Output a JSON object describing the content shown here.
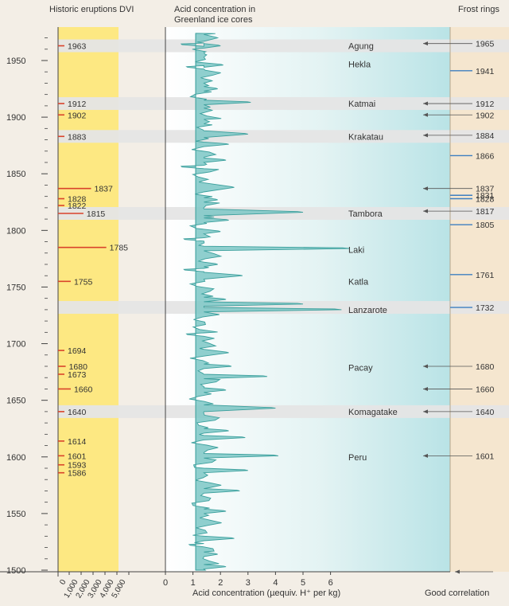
{
  "headers": {
    "left": "Historic eruptions DVI",
    "middle": [
      "Acid concentration in",
      "Greenland ice cores"
    ],
    "right": "Frost rings"
  },
  "colors": {
    "dvi_panel": "#fde882",
    "band": "#e5e5e5",
    "acid_fill": "#7cc7c5",
    "acid_line": "#3a9f9c",
    "eruption_tick": "#d9432b",
    "frost_arrow": "#555555",
    "frost_good": "#3d7fc0",
    "axis": "#444444"
  },
  "chart_data": {
    "type": "line",
    "title": "",
    "year_axis": {
      "min": 1500,
      "max": 1975,
      "ticks": [
        1500,
        1550,
        1600,
        1650,
        1700,
        1750,
        1800,
        1850,
        1900,
        1950
      ]
    },
    "dvi_axis": {
      "ticks": [
        "0",
        "1,000",
        "2,000",
        "3,000",
        "4,000",
        "5,000"
      ],
      "max": 5000
    },
    "eruptions_dvi": [
      {
        "year": 1963,
        "dvi": 110
      },
      {
        "year": 1912,
        "dvi": 110
      },
      {
        "year": 1902,
        "dvi": 220
      },
      {
        "year": 1883,
        "dvi": 220
      },
      {
        "year": 1837,
        "dvi": 2600
      },
      {
        "year": 1828,
        "dvi": 250
      },
      {
        "year": 1822,
        "dvi": 450
      },
      {
        "year": 1815,
        "dvi": 2000
      },
      {
        "year": 1785,
        "dvi": 3800
      },
      {
        "year": 1755,
        "dvi": 1000
      },
      {
        "year": 1694,
        "dvi": 500
      },
      {
        "year": 1680,
        "dvi": 600
      },
      {
        "year": 1673,
        "dvi": 500
      },
      {
        "year": 1660,
        "dvi": 1000
      },
      {
        "year": 1640,
        "dvi": 250
      },
      {
        "year": 1614,
        "dvi": 250
      },
      {
        "year": 1601,
        "dvi": 250
      },
      {
        "year": 1593,
        "dvi": 250
      },
      {
        "year": 1586,
        "dvi": 250
      }
    ],
    "acid": {
      "xlabel": "Acid concentration (µequiv. H⁺ per  kg)",
      "ticks": [
        0,
        1,
        2,
        3,
        4,
        5,
        6
      ],
      "baseline": 1.1,
      "spikes": [
        {
          "year": 1970,
          "value": 1.9,
          "w": 3
        },
        {
          "year": 1963,
          "value": 2.0,
          "w": 2
        },
        {
          "year": 1955,
          "value": 1.5,
          "w": 2
        },
        {
          "year": 1946,
          "value": 2.1,
          "w": 2
        },
        {
          "year": 1932,
          "value": 1.7,
          "w": 2
        },
        {
          "year": 1925,
          "value": 1.9,
          "w": 2
        },
        {
          "year": 1913,
          "value": 3.1,
          "w": 2
        },
        {
          "year": 1906,
          "value": 1.7,
          "w": 2
        },
        {
          "year": 1896,
          "value": 1.6,
          "w": 2
        },
        {
          "year": 1885,
          "value": 3.0,
          "w": 3
        },
        {
          "year": 1876,
          "value": 2.3,
          "w": 2
        },
        {
          "year": 1862,
          "value": 2.2,
          "w": 2
        },
        {
          "year": 1838,
          "value": 2.5,
          "w": 4
        },
        {
          "year": 1827,
          "value": 1.9,
          "w": 2
        },
        {
          "year": 1816,
          "value": 5.0,
          "w": 3
        },
        {
          "year": 1809,
          "value": 2.3,
          "w": 2
        },
        {
          "year": 1799,
          "value": 2.0,
          "w": 2
        },
        {
          "year": 1784,
          "value": 6.7,
          "w": 2
        },
        {
          "year": 1770,
          "value": 1.9,
          "w": 2
        },
        {
          "year": 1760,
          "value": 2.8,
          "w": 3
        },
        {
          "year": 1739,
          "value": 2.2,
          "w": 2
        },
        {
          "year": 1735,
          "value": 5.0,
          "w": 2
        },
        {
          "year": 1730,
          "value": 6.4,
          "w": 2
        },
        {
          "year": 1692,
          "value": 2.3,
          "w": 3
        },
        {
          "year": 1680,
          "value": 2.4,
          "w": 2
        },
        {
          "year": 1671,
          "value": 3.7,
          "w": 2
        },
        {
          "year": 1659,
          "value": 2.2,
          "w": 2
        },
        {
          "year": 1643,
          "value": 4.0,
          "w": 3
        },
        {
          "year": 1623,
          "value": 2.3,
          "w": 2
        },
        {
          "year": 1617,
          "value": 2.9,
          "w": 2
        },
        {
          "year": 1601,
          "value": 4.1,
          "w": 2
        },
        {
          "year": 1588,
          "value": 3.0,
          "w": 2
        },
        {
          "year": 1570,
          "value": 2.7,
          "w": 2
        },
        {
          "year": 1552,
          "value": 2.2,
          "w": 2
        },
        {
          "year": 1528,
          "value": 2.5,
          "w": 2
        },
        {
          "year": 1514,
          "value": 1.9,
          "w": 2
        },
        {
          "year": 1503,
          "value": 2.2,
          "w": 2
        }
      ],
      "dips": [
        {
          "year": 1964,
          "value": 0.6
        },
        {
          "year": 1944,
          "value": 0.8
        },
        {
          "year": 1856,
          "value": 0.6
        },
        {
          "year": 1792,
          "value": 0.7
        },
        {
          "year": 1765,
          "value": 0.7
        },
        {
          "year": 1708,
          "value": 0.8
        },
        {
          "year": 1522,
          "value": 0.9
        }
      ]
    },
    "volcanoes": [
      {
        "name": "Agung",
        "year": 1963
      },
      {
        "name": "Hekla",
        "year": 1947
      },
      {
        "name": "Katmai",
        "year": 1912
      },
      {
        "name": "Krakatau",
        "year": 1883
      },
      {
        "name": "Tambora",
        "year": 1815
      },
      {
        "name": "Laki",
        "year": 1783
      },
      {
        "name": "Katla",
        "year": 1755
      },
      {
        "name": "Lanzarote",
        "year": 1730
      },
      {
        "name": "Pacay",
        "year": 1679
      },
      {
        "name": "Komagatake",
        "year": 1640
      },
      {
        "name": "Peru",
        "year": 1600
      }
    ],
    "bands": [
      1963,
      1912,
      1883,
      1815,
      1732,
      1640
    ],
    "frost_rings": [
      {
        "year": 1965,
        "arrow": true
      },
      {
        "year": 1941,
        "arrow": false
      },
      {
        "year": 1912,
        "arrow": true
      },
      {
        "year": 1902,
        "arrow": true
      },
      {
        "year": 1884,
        "arrow": true
      },
      {
        "year": 1866,
        "arrow": false
      },
      {
        "year": 1837,
        "arrow": true
      },
      {
        "year": 1831,
        "arrow": false
      },
      {
        "year": 1828,
        "arrow": false
      },
      {
        "year": 1817,
        "arrow": true
      },
      {
        "year": 1805,
        "arrow": false
      },
      {
        "year": 1761,
        "arrow": false
      },
      {
        "year": 1732,
        "arrow": false
      },
      {
        "year": 1680,
        "arrow": true
      },
      {
        "year": 1660,
        "arrow": true
      },
      {
        "year": 1640,
        "arrow": true
      },
      {
        "year": 1601,
        "arrow": true
      }
    ],
    "frost_legend": "Good correlation"
  }
}
